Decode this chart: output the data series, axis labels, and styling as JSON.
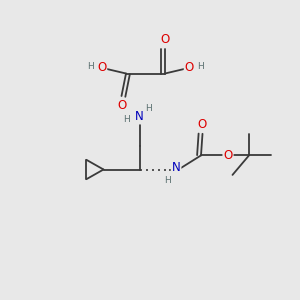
{
  "bg_color": "#e8e8e8",
  "bond_color": "#3a3a3a",
  "atom_colors": {
    "O": "#dd0000",
    "N": "#0000bb",
    "C": "#3a3a3a",
    "H": "#5a7070"
  },
  "font_size_atom": 8.5,
  "font_size_H": 6.5
}
